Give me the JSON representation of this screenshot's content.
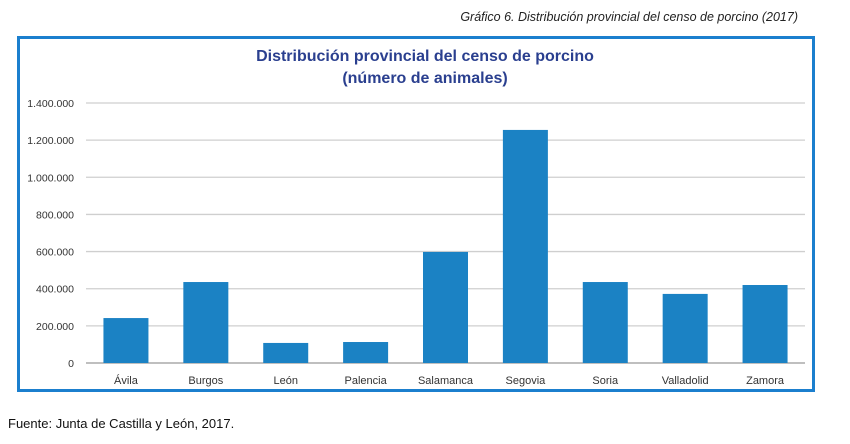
{
  "caption": "Gráfico 6. Distribución provincial del censo de porcino (2017)",
  "source": "Fuente: Junta de Castilla y León, 2017.",
  "chart_data": {
    "type": "bar",
    "title": "Distribución provincial del censo de porcino",
    "subtitle": "(número de animales)",
    "categories": [
      "Ávila",
      "Burgos",
      "León",
      "Palencia",
      "Salamanca",
      "Segovia",
      "Soria",
      "Valladolid",
      "Zamora"
    ],
    "values": [
      242000,
      436000,
      108000,
      113000,
      598000,
      1255000,
      436000,
      372000,
      420000
    ],
    "ylim": [
      0,
      1400000
    ],
    "yticks": [
      0,
      200000,
      400000,
      600000,
      800000,
      1000000,
      1200000,
      1400000
    ],
    "ytick_labels": [
      "0",
      "200.000",
      "400.000",
      "600.000",
      "800.000",
      "1.000.000",
      "1.200.000",
      "1.400.000"
    ],
    "xlabel": "",
    "ylabel": "",
    "grid": true,
    "color": "#1b82c4"
  }
}
